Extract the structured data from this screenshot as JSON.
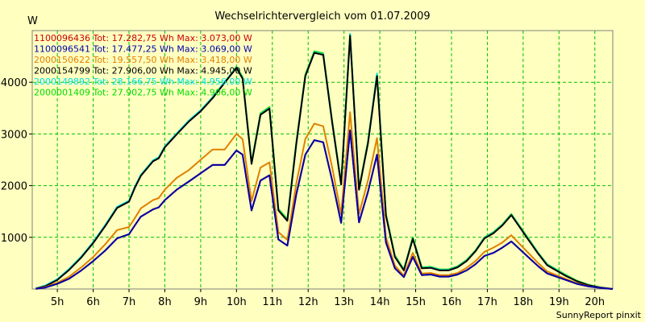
{
  "chart_data": {
    "type": "line",
    "title": "Wechselrichtervergleich vom 01.07.2009",
    "ylabel": "W",
    "footer": "SunnyReport pinxit",
    "ylim": [
      0,
      5000
    ],
    "xlim": [
      4.3,
      20.5
    ],
    "x_ticks": [
      5,
      6,
      7,
      8,
      9,
      10,
      11,
      12,
      13,
      14,
      15,
      16,
      17,
      18,
      19,
      20
    ],
    "x_tick_labels": [
      "5h",
      "6h",
      "7h",
      "8h",
      "9h",
      "10h",
      "11h",
      "12h",
      "13h",
      "14h",
      "15h",
      "16h",
      "17h",
      "18h",
      "19h",
      "20h"
    ],
    "y_ticks": [
      1000,
      2000,
      3000,
      4000
    ],
    "y_tick_labels": [
      "1000",
      "2000",
      "3000",
      "4000"
    ],
    "grid": true,
    "legend": [
      {
        "text": "1100096436 Tot: 17.282,75 Wh Max: 3.073,00 W",
        "color": "#cc0000"
      },
      {
        "text": "1100096541 Tot: 17.477,25 Wh Max: 3.069,00 W",
        "color": "#0000aa"
      },
      {
        "text": "2000150622 Tot: 19.557,50 Wh Max: 3.418,00 W",
        "color": "#e08000"
      },
      {
        "text": "2000154799 Tot: 27.906,00 Wh Max: 4.945,00 W",
        "color": "#000000"
      },
      {
        "text": "2000149892 Tot: 28.166,75 Wh Max: 4.956,00 W",
        "color": "#00e0e0"
      },
      {
        "text": "2000001409 Tot: 27.902,75 Wh Max: 4.906,00 W",
        "color": "#00dd00"
      }
    ],
    "x": [
      4.4,
      4.67,
      5.0,
      5.33,
      5.67,
      6.0,
      6.33,
      6.67,
      7.0,
      7.17,
      7.33,
      7.67,
      7.83,
      8.0,
      8.33,
      8.67,
      9.0,
      9.33,
      9.67,
      10.0,
      10.17,
      10.42,
      10.67,
      10.92,
      11.17,
      11.42,
      11.67,
      11.92,
      12.17,
      12.42,
      12.67,
      12.92,
      13.17,
      13.42,
      13.67,
      13.92,
      14.17,
      14.42,
      14.67,
      14.92,
      15.17,
      15.42,
      15.67,
      15.92,
      16.17,
      16.42,
      16.67,
      16.92,
      17.17,
      17.42,
      17.67,
      17.92,
      18.17,
      18.42,
      18.67,
      18.92,
      19.17,
      19.5,
      19.83,
      20.17,
      20.5
    ],
    "series": [
      {
        "name": "2000001409",
        "color": "#00dd00",
        "values": [
          10,
          60,
          180,
          380,
          620,
          900,
          1220,
          1580,
          1700,
          1980,
          2200,
          2480,
          2540,
          2750,
          3000,
          3250,
          3450,
          3700,
          4000,
          4300,
          4100,
          2450,
          3400,
          3520,
          1550,
          1350,
          2850,
          4150,
          4600,
          4560,
          3250,
          2050,
          4920,
          1950,
          2850,
          4150,
          1450,
          650,
          380,
          1000,
          420,
          430,
          380,
          380,
          440,
          560,
          750,
          1000,
          1100,
          1250,
          1450,
          1200,
          950,
          700,
          480,
          380,
          280,
          160,
          80,
          30,
          0
        ]
      },
      {
        "name": "2000149892",
        "color": "#00e0e0",
        "values": [
          10,
          70,
          190,
          390,
          630,
          910,
          1230,
          1590,
          1710,
          1990,
          2210,
          2490,
          2550,
          2760,
          3010,
          3260,
          3460,
          3710,
          4010,
          4290,
          4080,
          2430,
          3380,
          3500,
          1530,
          1330,
          2830,
          4130,
          4580,
          4540,
          3230,
          2030,
          4940,
          1930,
          2830,
          4170,
          1430,
          630,
          370,
          980,
          410,
          420,
          370,
          370,
          430,
          550,
          740,
          990,
          1090,
          1240,
          1440,
          1190,
          940,
          690,
          470,
          370,
          270,
          150,
          75,
          28,
          0
        ]
      },
      {
        "name": "2000154799",
        "color": "#000000",
        "values": [
          8,
          55,
          175,
          370,
          610,
          890,
          1210,
          1570,
          1690,
          1970,
          2190,
          2470,
          2530,
          2740,
          2990,
          3240,
          3440,
          3690,
          3990,
          4280,
          4070,
          2420,
          3370,
          3490,
          1520,
          1320,
          2820,
          4120,
          4570,
          4530,
          3220,
          2020,
          4900,
          1920,
          2820,
          4120,
          1420,
          620,
          360,
          970,
          400,
          410,
          360,
          360,
          420,
          540,
          730,
          980,
          1080,
          1230,
          1430,
          1180,
          930,
          680,
          460,
          360,
          260,
          150,
          72,
          26,
          0
        ]
      },
      {
        "name": "2000150622",
        "color": "#e08000",
        "values": [
          5,
          40,
          120,
          240,
          420,
          620,
          860,
          1140,
          1200,
          1380,
          1560,
          1720,
          1760,
          1920,
          2150,
          2300,
          2500,
          2700,
          2700,
          3000,
          2900,
          1700,
          2350,
          2450,
          1100,
          950,
          2050,
          2900,
          3200,
          3150,
          2350,
          1450,
          3420,
          1450,
          2100,
          2920,
          1000,
          450,
          260,
          700,
          300,
          310,
          270,
          270,
          310,
          410,
          540,
          720,
          800,
          900,
          1040,
          860,
          680,
          500,
          340,
          270,
          200,
          110,
          55,
          20,
          0
        ]
      },
      {
        "name": "1100096436",
        "color": "#cc0000",
        "values": [
          5,
          30,
          100,
          200,
          360,
          540,
          740,
          980,
          1060,
          1240,
          1400,
          1540,
          1580,
          1720,
          1920,
          2080,
          2240,
          2400,
          2400,
          2680,
          2600,
          1520,
          2100,
          2200,
          960,
          840,
          1840,
          2600,
          2880,
          2840,
          2100,
          1280,
          3070,
          1290,
          1880,
          2600,
          900,
          400,
          230,
          620,
          270,
          280,
          240,
          240,
          280,
          360,
          480,
          640,
          700,
          800,
          920,
          760,
          600,
          440,
          300,
          240,
          180,
          100,
          50,
          18,
          0
        ]
      },
      {
        "name": "1100096541",
        "color": "#0000aa",
        "values": [
          5,
          30,
          100,
          200,
          360,
          540,
          740,
          980,
          1060,
          1240,
          1400,
          1540,
          1580,
          1720,
          1920,
          2080,
          2240,
          2400,
          2400,
          2680,
          2600,
          1520,
          2100,
          2200,
          960,
          840,
          1840,
          2600,
          2880,
          2840,
          2100,
          1280,
          3069,
          1290,
          1880,
          2600,
          900,
          400,
          230,
          620,
          270,
          280,
          240,
          240,
          280,
          360,
          480,
          640,
          700,
          800,
          920,
          760,
          600,
          440,
          300,
          240,
          180,
          100,
          50,
          18,
          0
        ]
      }
    ]
  }
}
